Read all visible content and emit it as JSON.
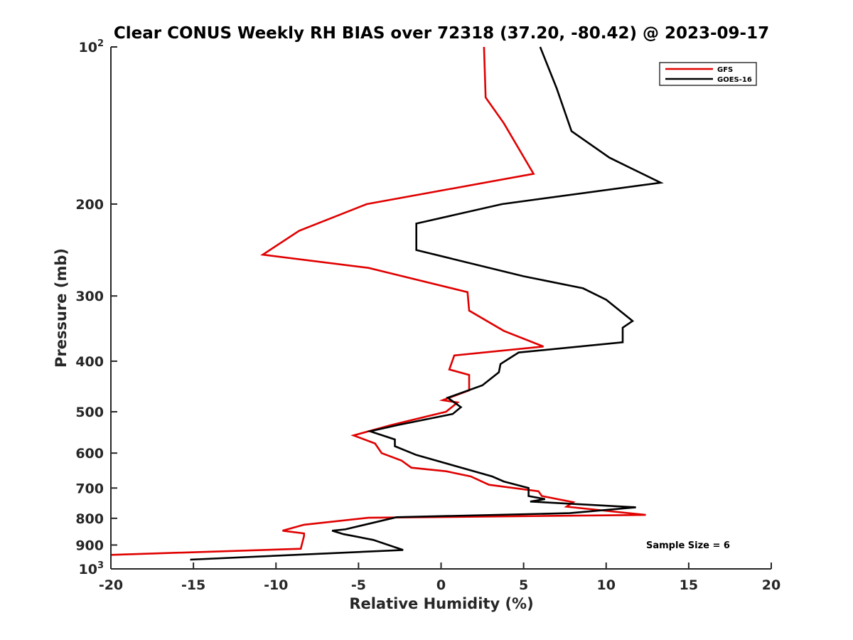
{
  "chart_data": {
    "type": "line",
    "title": "Clear CONUS Weekly RH BIAS over 72318 (37.20, -80.42) @ 2023-09-17",
    "xlabel": "Relative Humidity (%)",
    "ylabel": "Pressure (mb)",
    "xlim": [
      -20,
      20
    ],
    "ylim": [
      100,
      1000
    ],
    "y_scale": "log",
    "y_reversed": true,
    "x_ticks": [
      "-20",
      "-15",
      "-10",
      "-5",
      "0",
      "5",
      "10",
      "15",
      "20"
    ],
    "y_tick_labels": [
      "200",
      "300",
      "400",
      "500",
      "600",
      "700",
      "800",
      "900"
    ],
    "y_tick_values": [
      200,
      300,
      400,
      500,
      600,
      700,
      800,
      900
    ],
    "y_end_labels": [
      {
        "base": "10",
        "exp": "2",
        "value": 100
      },
      {
        "base": "10",
        "exp": "3",
        "value": 1000
      }
    ],
    "grid": false,
    "legend_position": "top-right",
    "annotation": "Sample Size = 6",
    "series": [
      {
        "name": "GFS",
        "color": "#e00000",
        "points": [
          [
            2.6,
            100
          ],
          [
            2.7,
            125
          ],
          [
            3.8,
            140
          ],
          [
            5.6,
            175
          ],
          [
            -4.5,
            200
          ],
          [
            -8.6,
            225
          ],
          [
            -10.8,
            250
          ],
          [
            -4.4,
            265
          ],
          [
            1.6,
            295
          ],
          [
            1.7,
            320
          ],
          [
            3.8,
            350
          ],
          [
            6.2,
            375
          ],
          [
            0.8,
            390
          ],
          [
            0.5,
            415
          ],
          [
            1.7,
            425
          ],
          [
            1.7,
            455
          ],
          [
            0.1,
            475
          ],
          [
            1.0,
            480
          ],
          [
            0.3,
            500
          ],
          [
            -3.0,
            530
          ],
          [
            -5.3,
            555
          ],
          [
            -4.0,
            575
          ],
          [
            -3.6,
            600
          ],
          [
            -2.4,
            620
          ],
          [
            -1.8,
            640
          ],
          [
            0.3,
            650
          ],
          [
            1.8,
            665
          ],
          [
            2.9,
            690
          ],
          [
            5.9,
            710
          ],
          [
            6.1,
            725
          ],
          [
            8.0,
            745
          ],
          [
            7.6,
            760
          ],
          [
            12.4,
            788
          ],
          [
            -4.4,
            798
          ],
          [
            -8.3,
            823
          ],
          [
            -9.6,
            845
          ],
          [
            -8.3,
            855
          ],
          [
            -8.3,
            865
          ],
          [
            -8.5,
            915
          ],
          [
            -20.0,
            940
          ]
        ]
      },
      {
        "name": "GOES-16",
        "color": "#000000",
        "points": [
          [
            6.0,
            100
          ],
          [
            7.0,
            120
          ],
          [
            7.9,
            145
          ],
          [
            10.2,
            163
          ],
          [
            13.3,
            182
          ],
          [
            3.7,
            200
          ],
          [
            -1.5,
            218
          ],
          [
            -1.5,
            245
          ],
          [
            5.0,
            275
          ],
          [
            8.6,
            290
          ],
          [
            10.0,
            305
          ],
          [
            11.6,
            335
          ],
          [
            11.0,
            345
          ],
          [
            11.0,
            368
          ],
          [
            4.7,
            385
          ],
          [
            3.6,
            405
          ],
          [
            3.5,
            420
          ],
          [
            2.5,
            445
          ],
          [
            0.4,
            470
          ],
          [
            1.2,
            490
          ],
          [
            0.7,
            505
          ],
          [
            -2.6,
            530
          ],
          [
            -4.3,
            545
          ],
          [
            -2.8,
            565
          ],
          [
            -2.8,
            582
          ],
          [
            -1.5,
            605
          ],
          [
            3.1,
            665
          ],
          [
            3.8,
            680
          ],
          [
            5.3,
            700
          ],
          [
            5.3,
            725
          ],
          [
            6.3,
            735
          ],
          [
            5.4,
            743
          ],
          [
            11.8,
            762
          ],
          [
            7.8,
            782
          ],
          [
            -2.7,
            796
          ],
          [
            -5.8,
            840
          ],
          [
            -6.6,
            845
          ],
          [
            -5.9,
            858
          ],
          [
            -5.3,
            865
          ],
          [
            -4.1,
            880
          ],
          [
            -2.3,
            920
          ],
          [
            -15.2,
            960
          ]
        ]
      }
    ]
  }
}
